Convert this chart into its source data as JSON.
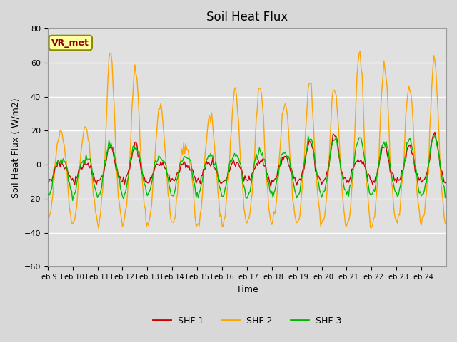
{
  "title": "Soil Heat Flux",
  "xlabel": "Time",
  "ylabel": "Soil Heat Flux ( W/m2)",
  "ylim": [
    -60,
    80
  ],
  "yticks": [
    -60,
    -40,
    -20,
    0,
    20,
    40,
    60,
    80
  ],
  "xtick_labels": [
    "Feb 9",
    "Feb 10",
    "Feb 11",
    "Feb 12",
    "Feb 13",
    "Feb 14",
    "Feb 15",
    "Feb 16",
    "Feb 17",
    "Feb 18",
    "Feb 19",
    "Feb 20",
    "Feb 21",
    "Feb 22",
    "Feb 23",
    "Feb 24"
  ],
  "color_shf1": "#cc0000",
  "color_shf2": "#ffa500",
  "color_shf3": "#00bb00",
  "bg_color": "#e0e0e0",
  "grid_color": "#ffffff",
  "legend_label": "VR_met",
  "legend_items": [
    "SHF 1",
    "SHF 2",
    "SHF 3"
  ],
  "seed": 42
}
